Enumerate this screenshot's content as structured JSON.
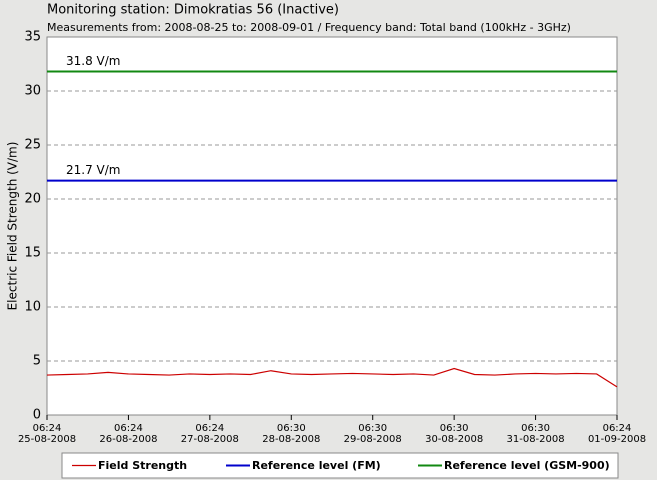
{
  "chart_data": {
    "type": "line",
    "title": "Monitoring station: Dimokratias 56 (Inactive)",
    "subtitle": "Measurements from: 2008-08-25 to: 2008-09-01 / Frequency band: Total band (100kHz - 3GHz)",
    "y_label": "Electric Field Strength (V/m)",
    "ylim": [
      0,
      35
    ],
    "yticks": [
      0,
      5,
      10,
      15,
      20,
      25,
      30,
      35
    ],
    "xlim": [
      0,
      7
    ],
    "xticks": [
      {
        "value": 0,
        "label": "06:24\n25-08-2008"
      },
      {
        "value": 1,
        "label": "06:24\n26-08-2008"
      },
      {
        "value": 2,
        "label": "06:24\n27-08-2008"
      },
      {
        "value": 3,
        "label": "06:30\n28-08-2008"
      },
      {
        "value": 4,
        "label": "06:30\n29-08-2008"
      },
      {
        "value": 5,
        "label": "06:30\n30-08-2008"
      },
      {
        "value": 6,
        "label": "06:30\n31-08-2008"
      },
      {
        "value": 7,
        "label": "06:24\n01-09-2008"
      }
    ],
    "grid": true,
    "series": [
      {
        "name": "Field Strength",
        "color": "#cc0000",
        "x": [
          0,
          0.25,
          0.5,
          0.75,
          1,
          1.25,
          1.5,
          1.75,
          2,
          2.25,
          2.5,
          2.75,
          3,
          3.25,
          3.5,
          3.75,
          4,
          4.25,
          4.5,
          4.75,
          5,
          5.25,
          5.5,
          5.75,
          6,
          6.25,
          6.5,
          6.75,
          7
        ],
        "values": [
          3.7,
          3.75,
          3.8,
          3.95,
          3.8,
          3.75,
          3.7,
          3.8,
          3.75,
          3.8,
          3.75,
          4.1,
          3.8,
          3.75,
          3.8,
          3.85,
          3.8,
          3.75,
          3.8,
          3.7,
          4.3,
          3.75,
          3.7,
          3.8,
          3.85,
          3.8,
          3.85,
          3.8,
          2.6
        ]
      },
      {
        "name": "Reference level (FM)",
        "color": "#0000cc",
        "value": 21.7,
        "value_label": "21.7 V/m"
      },
      {
        "name": "Reference level (GSM-900)",
        "color": "#118811",
        "value": 31.8,
        "value_label": "31.8 V/m"
      }
    ]
  }
}
